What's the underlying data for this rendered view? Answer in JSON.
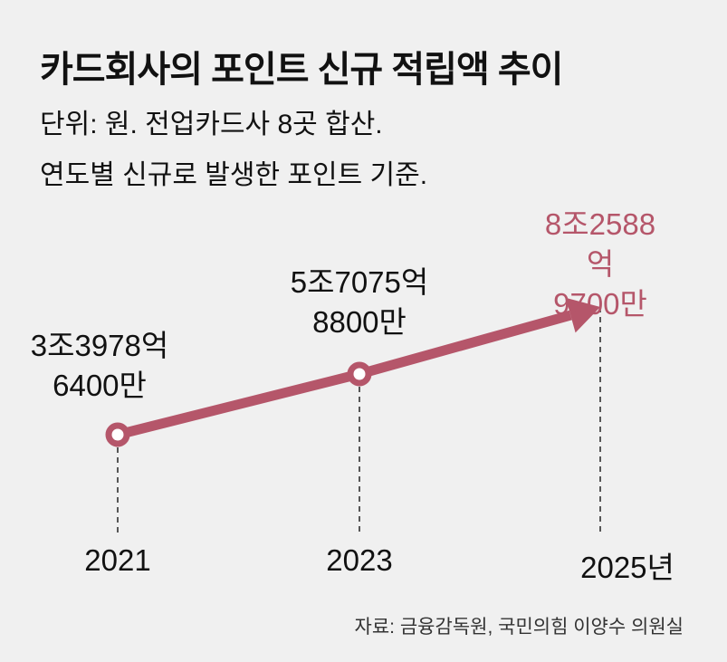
{
  "title": "카드회사의 포인트 신규 적립액 추이",
  "subtitle_lines": [
    "단위: 원. 전업카드사 8곳 합산.",
    "연도별 신규로 발생한 포인트 기준."
  ],
  "source": "자료: 금융감독원, 국민의힘 이양수 의원실",
  "colors": {
    "accent": "#b5566a",
    "background": "#f0f0f0",
    "text": "#111111"
  },
  "chart_data": {
    "type": "line",
    "title": "카드회사의 포인트 신규 적립액 추이",
    "xlabel": "",
    "ylabel": "원",
    "categories": [
      "2021",
      "2023",
      "2025년"
    ],
    "values": [
      3397864000000,
      5707588000000,
      8258897000000
    ],
    "labels": [
      [
        "3조3978억",
        "6400만"
      ],
      [
        "5조7075억",
        "8800만"
      ],
      [
        "8조2588억",
        "9700만"
      ]
    ],
    "grid": false
  }
}
